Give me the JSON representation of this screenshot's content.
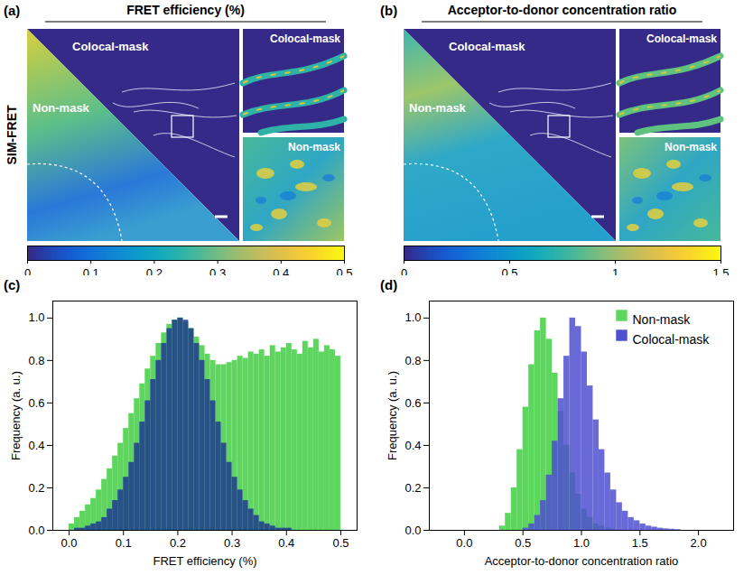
{
  "chart_data": [
    {
      "type": "image",
      "panel_label": "(a)",
      "title": "FRET efficiency (%)",
      "row_label": "SIM-FRET",
      "region_labels": [
        "Colocal-mask",
        "Non-mask"
      ],
      "inset_labels": [
        "Colocal-mask",
        "Non-mask"
      ],
      "colorbar": {
        "range": [
          0,
          0.5
        ],
        "ticks": [
          0,
          0.1,
          0.2,
          0.3,
          0.4,
          0.5
        ]
      }
    },
    {
      "type": "image",
      "panel_label": "(b)",
      "title": "Acceptor-to-donor concentration ratio",
      "region_labels": [
        "Colocal-mask",
        "Non-mask"
      ],
      "inset_labels": [
        "Colocal-mask",
        "Non-mask"
      ],
      "colorbar": {
        "range": [
          0,
          1.5
        ],
        "ticks": [
          0,
          0.5,
          1,
          1.5
        ]
      }
    },
    {
      "type": "histogram",
      "panel_label": "(c)",
      "x_label": "FRET efficiency (%)",
      "y_label": "Frequency (a. u.)",
      "legend": false,
      "bins": [
        0,
        0.01,
        0.02,
        0.03,
        0.04,
        0.05,
        0.06,
        0.07,
        0.08,
        0.09,
        0.1,
        0.11,
        0.12,
        0.13,
        0.14,
        0.15,
        0.16,
        0.17,
        0.18,
        0.19,
        0.2,
        0.21,
        0.22,
        0.23,
        0.24,
        0.25,
        0.26,
        0.27,
        0.28,
        0.29,
        0.3,
        0.31,
        0.32,
        0.33,
        0.34,
        0.35,
        0.36,
        0.37,
        0.38,
        0.39,
        0.4,
        0.41,
        0.42,
        0.43,
        0.44,
        0.45,
        0.46,
        0.47,
        0.48,
        0.49,
        0.5
      ],
      "series": [
        {
          "color": "#5cd65c",
          "values": [
            0.03,
            0.06,
            0.09,
            0.12,
            0.15,
            0.19,
            0.24,
            0.29,
            0.35,
            0.41,
            0.48,
            0.55,
            0.62,
            0.69,
            0.76,
            0.82,
            0.88,
            0.93,
            0.97,
            0.99,
            1.0,
            0.98,
            0.95,
            0.91,
            0.87,
            0.83,
            0.8,
            0.78,
            0.78,
            0.79,
            0.8,
            0.82,
            0.81,
            0.84,
            0.83,
            0.85,
            0.82,
            0.87,
            0.84,
            0.86,
            0.88,
            0.85,
            0.83,
            0.89,
            0.86,
            0.9,
            0.84,
            0.87,
            0.85,
            0.82
          ]
        },
        {
          "color": "#1f3a93",
          "values": [
            0,
            0.01,
            0.01,
            0.02,
            0.03,
            0.04,
            0.06,
            0.1,
            0.14,
            0.19,
            0.25,
            0.32,
            0.41,
            0.51,
            0.61,
            0.71,
            0.8,
            0.88,
            0.95,
            0.99,
            1.0,
            0.99,
            0.95,
            0.88,
            0.8,
            0.71,
            0.61,
            0.51,
            0.41,
            0.32,
            0.25,
            0.19,
            0.14,
            0.1,
            0.07,
            0.04,
            0.03,
            0.02,
            0.01,
            0.01,
            0.01,
            0,
            0,
            0,
            0,
            0,
            0,
            0,
            0,
            0
          ]
        }
      ],
      "xlim": [
        -0.03,
        0.53
      ],
      "xticks": [
        {
          "value": 0,
          "label": "0.0"
        },
        0.1,
        0.2,
        0.3,
        0.4,
        0.5
      ],
      "ylim": [
        0,
        1.08
      ],
      "yticks": [
        {
          "value": 0,
          "label": "0.0"
        },
        0.2,
        0.4,
        0.6,
        0.8,
        {
          "value": 1,
          "label": "1.0"
        }
      ]
    },
    {
      "type": "histogram",
      "panel_label": "(d)",
      "x_label": "Acceptor-to-donor concentration ratio",
      "y_label": "Frequency (a. u.)",
      "legend": "top-right",
      "bins": [
        0.3,
        0.35,
        0.4,
        0.45,
        0.5,
        0.55,
        0.6,
        0.65,
        0.7,
        0.75,
        0.8,
        0.85,
        0.9,
        0.95,
        1.0,
        1.05,
        1.1,
        1.15,
        1.2,
        1.25,
        1.3,
        1.35,
        1.4,
        1.45,
        1.5,
        1.55,
        1.6,
        1.65,
        1.7,
        1.75,
        1.8,
        1.85,
        1.9,
        1.95,
        2.0
      ],
      "series": [
        {
          "name": "Non-mask",
          "color": "#5cd65c",
          "values": [
            0.02,
            0.08,
            0.2,
            0.38,
            0.58,
            0.78,
            0.94,
            1.0,
            0.9,
            0.74,
            0.56,
            0.4,
            0.27,
            0.17,
            0.1,
            0.06,
            0.03,
            0.02,
            0.01,
            0.005,
            0,
            0,
            0,
            0,
            0,
            0,
            0,
            0,
            0,
            0,
            0,
            0,
            0,
            0
          ]
        },
        {
          "name": "Colocal-mask",
          "color": "#4f4fd1",
          "values": [
            0,
            0,
            0,
            0,
            0.01,
            0.03,
            0.07,
            0.14,
            0.26,
            0.42,
            0.62,
            0.82,
            1.0,
            0.96,
            0.84,
            0.68,
            0.52,
            0.38,
            0.27,
            0.19,
            0.13,
            0.09,
            0.06,
            0.045,
            0.03,
            0.02,
            0.015,
            0.01,
            0.007,
            0.005,
            0.003,
            0,
            0,
            0
          ]
        }
      ],
      "xlim": [
        -0.3,
        2.3
      ],
      "xticks": [
        {
          "value": 0,
          "label": "0.0"
        },
        0.5,
        {
          "value": 1,
          "label": "1.0"
        },
        1.5,
        {
          "value": 2,
          "label": "2.0"
        }
      ],
      "ylim": [
        0,
        1.08
      ],
      "yticks": [
        {
          "value": 0,
          "label": "0.0"
        },
        0.2,
        0.4,
        0.6,
        0.8,
        {
          "value": 1,
          "label": "1.0"
        }
      ]
    }
  ]
}
